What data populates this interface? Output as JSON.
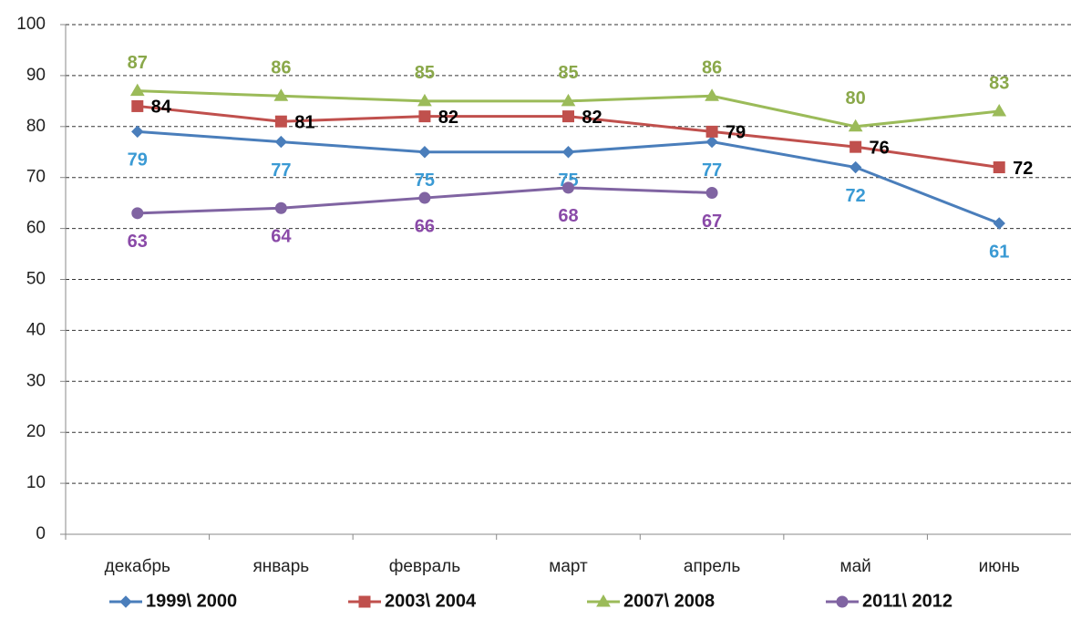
{
  "chart_data": {
    "type": "line",
    "categories": [
      "декабрь",
      "январь",
      "февраль",
      "март",
      "апрель",
      "май",
      "июнь"
    ],
    "series": [
      {
        "name": "1999\\ 2000",
        "color": "#4a7ebb",
        "label_color": "#3a9ad4",
        "marker": "diamond",
        "values": [
          79,
          77,
          75,
          75,
          77,
          72,
          61
        ]
      },
      {
        "name": "2003\\ 2004",
        "color": "#c0504d",
        "label_color": "#000000",
        "marker": "square",
        "values": [
          84,
          81,
          82,
          82,
          79,
          76,
          72
        ]
      },
      {
        "name": "2007\\ 2008",
        "color": "#9bbb59",
        "label_color": "#8aa84a",
        "marker": "triangle",
        "values": [
          87,
          86,
          85,
          85,
          86,
          80,
          83
        ]
      },
      {
        "name": "2011\\ 2012",
        "color": "#8064a2",
        "label_color": "#8a4aa8",
        "marker": "circle",
        "values": [
          63,
          64,
          66,
          68,
          67,
          null,
          null
        ]
      }
    ],
    "ylim": [
      0,
      100
    ],
    "yticks": [
      0,
      10,
      20,
      30,
      40,
      50,
      60,
      70,
      80,
      90,
      100
    ],
    "grid": true,
    "legend": "bottom"
  }
}
